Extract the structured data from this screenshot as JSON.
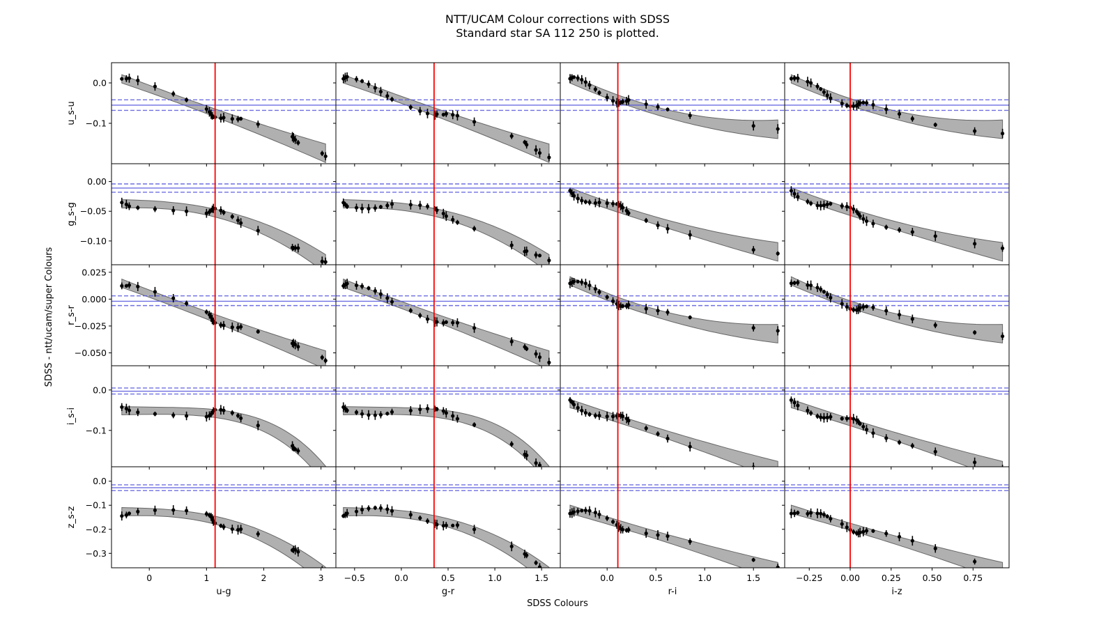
{
  "title": "NTT/UCAM Colour corrections with SDSS",
  "subtitle": "Standard star SA 112 250 is plotted.",
  "supxlabel": "SDSS Colours",
  "supylabel": "SDSS - ntt/ucam/super Colours",
  "chart_data": {
    "type": "scatter",
    "columns": [
      {
        "xlabel": "u-g",
        "xlim": [
          -0.66,
          3.26
        ],
        "ticks": [
          0,
          1,
          2,
          3
        ],
        "tick_labels": [
          "0",
          "1",
          "2",
          "3"
        ],
        "x": [
          -0.48,
          -0.4,
          -0.35,
          -0.2,
          0.1,
          0.42,
          0.65,
          1.0,
          1.05,
          1.08,
          1.1,
          1.12,
          1.15,
          1.25,
          1.3,
          1.45,
          1.55,
          1.6,
          1.9,
          2.5,
          2.52,
          2.55,
          2.6,
          3.02,
          3.08
        ],
        "star": 1.15
      },
      {
        "xlabel": "g-r",
        "xlim": [
          -0.7,
          1.7
        ],
        "ticks": [
          -0.5,
          0,
          0.5,
          1.0,
          1.5
        ],
        "tick_labels": [
          "−0.5",
          "0.0",
          "0.5",
          "1.0",
          "1.5"
        ],
        "x": [
          -0.62,
          -0.6,
          -0.58,
          -0.48,
          -0.42,
          -0.35,
          -0.28,
          -0.22,
          -0.15,
          -0.1,
          0.1,
          0.2,
          0.28,
          0.36,
          0.38,
          0.45,
          0.48,
          0.55,
          0.6,
          0.78,
          1.18,
          1.32,
          1.34,
          1.44,
          1.48,
          1.58
        ],
        "star": 0.35
      },
      {
        "xlabel": "r-i",
        "xlim": [
          -0.48,
          1.82
        ],
        "ticks": [
          0,
          0.5,
          1.0,
          1.5
        ],
        "tick_labels": [
          "0.0",
          "0.5",
          "1.0",
          "1.5"
        ],
        "x": [
          -0.38,
          -0.36,
          -0.34,
          -0.3,
          -0.26,
          -0.22,
          -0.18,
          -0.12,
          -0.08,
          0,
          0.06,
          0.1,
          0.12,
          0.14,
          0.16,
          0.2,
          0.22,
          0.4,
          0.52,
          0.62,
          0.85,
          1.5,
          1.75
        ],
        "star": 0.11
      },
      {
        "xlabel": "i-z",
        "xlim": [
          -0.4,
          0.97
        ],
        "ticks": [
          -0.25,
          0,
          0.25,
          0.5,
          0.75
        ],
        "tick_labels": [
          "−0.25",
          "0.00",
          "0.25",
          "0.50",
          "0.75"
        ],
        "x": [
          -0.36,
          -0.34,
          -0.32,
          -0.26,
          -0.24,
          -0.2,
          -0.18,
          -0.16,
          -0.14,
          -0.12,
          -0.05,
          -0.02,
          0,
          0.02,
          0.04,
          0.05,
          0.06,
          0.08,
          0.1,
          0.14,
          0.22,
          0.3,
          0.38,
          0.52,
          0.76,
          0.93
        ],
        "star": 0.0
      }
    ],
    "rows": [
      {
        "ylabel": "u_s-u",
        "ylim": [
          -0.2,
          0.05
        ],
        "ticks": [
          0,
          -0.1
        ],
        "tick_labels": [
          "0.0",
          "−0.1"
        ],
        "band": [
          -0.042,
          -0.055,
          -0.068
        ]
      },
      {
        "ylabel": "g_s-g",
        "ylim": [
          -0.14,
          0.03
        ],
        "ticks": [
          0,
          -0.05,
          -0.1
        ],
        "tick_labels": [
          "0.00",
          "−0.05",
          "−0.10"
        ],
        "band": [
          -0.004,
          -0.011,
          -0.018
        ]
      },
      {
        "ylabel": "r_s-r",
        "ylim": [
          -0.062,
          0.032
        ],
        "ticks": [
          0.025,
          0,
          -0.025,
          -0.05
        ],
        "tick_labels": [
          "0.025",
          "0.000",
          "−0.025",
          "−0.050"
        ],
        "band": [
          0.003,
          -0.002,
          -0.006
        ]
      },
      {
        "ylabel": "i_s-i",
        "ylim": [
          -0.19,
          0.06
        ],
        "ticks": [
          0,
          -0.1
        ],
        "tick_labels": [
          "0.0",
          "−0.1"
        ],
        "band": [
          0.005,
          -0.003,
          -0.01
        ]
      },
      {
        "ylabel": "z_s-z",
        "ylim": [
          -0.36,
          0.06
        ],
        "ticks": [
          0,
          -0.1,
          -0.2,
          -0.3
        ],
        "tick_labels": [
          "0.0",
          "−0.1",
          "−0.2",
          "−0.3"
        ],
        "band": [
          -0.015,
          -0.027,
          -0.039
        ]
      }
    ],
    "marker_color": "#000000",
    "band_color": "#8888ff",
    "band_line_color": "#5555dd",
    "fit_fill_color": "#b0b0b0",
    "star_line_color": "#ff0000"
  }
}
